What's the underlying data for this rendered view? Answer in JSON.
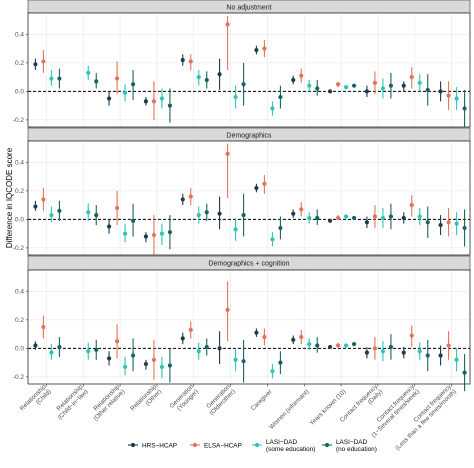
{
  "chart_data": {
    "type": "scatter",
    "subtype": "point-range (estimate with 95% interval), faceted",
    "ylabel": "Difference in IQCODE score",
    "xlabel": "",
    "ylim": [
      -0.25,
      0.55
    ],
    "yticks": [
      -0.2,
      0,
      0.2,
      0.4
    ],
    "reference_line": 0,
    "grid": true,
    "legend_position": "bottom",
    "categories": [
      [
        "Relationship",
        "(Child)"
      ],
      [
        "Relationship",
        "(Child−in−law)"
      ],
      [
        "Relationship",
        "(Other relative)"
      ],
      [
        "Relationship",
        "(Other)"
      ],
      [
        "Generation",
        "(Younger)"
      ],
      [
        "Generation",
        "(Olderother)"
      ],
      [
        "Caregiver"
      ],
      [
        "Women (informant)"
      ],
      [
        "Years known (10)"
      ],
      [
        "Contact frequency",
        "(Daily)"
      ],
      [
        "Contact frequency",
        "(1−Several times/week)"
      ],
      [
        "Contact frequency",
        "(Less than a few times/month)"
      ]
    ],
    "series": [
      {
        "name": "HRS−HCAP",
        "color": "#1f3a4d"
      },
      {
        "name": "ELSA−HCAP",
        "color": "#e0735a"
      },
      {
        "name": "LASI−DAD\n(some education)",
        "color": "#2ec4b6"
      },
      {
        "name": "LASI−DAD\n(no education)",
        "color": "#16655f"
      }
    ],
    "panels": [
      {
        "title": "No adjustment",
        "points": [
          [
            [
              0.19,
              0.15,
              0.23
            ],
            [
              0.21,
              0.13,
              0.29
            ],
            [
              0.09,
              0.04,
              0.15
            ],
            [
              0.09,
              0.02,
              0.16
            ]
          ],
          [
            [
              0,
              0,
              0
            ],
            [
              0,
              0,
              0
            ],
            [
              0.13,
              0.08,
              0.18
            ],
            [
              0.07,
              0.02,
              0.13
            ]
          ],
          [
            [
              -0.05,
              -0.1,
              0.0
            ],
            [
              0.09,
              -0.02,
              0.21
            ],
            [
              -0.01,
              -0.07,
              0.05
            ],
            [
              0.05,
              -0.06,
              0.15
            ]
          ],
          [
            [
              -0.07,
              -0.1,
              -0.04
            ],
            [
              -0.07,
              -0.2,
              0.07
            ],
            [
              -0.05,
              -0.12,
              0.02
            ],
            [
              -0.1,
              -0.22,
              0.02
            ]
          ],
          [
            [
              0.22,
              0.18,
              0.26
            ],
            [
              0.21,
              0.15,
              0.26
            ],
            [
              0.1,
              0.04,
              0.15
            ],
            [
              0.08,
              0.02,
              0.14
            ]
          ],
          [
            [
              0.12,
              0.01,
              0.23
            ],
            [
              0.47,
              0.15,
              0.53
            ],
            [
              -0.04,
              -0.12,
              0.04
            ],
            [
              0.05,
              -0.1,
              0.2
            ]
          ],
          [
            [
              0.29,
              0.26,
              0.32
            ],
            [
              0.3,
              0.24,
              0.36
            ],
            [
              -0.12,
              -0.17,
              -0.07
            ],
            [
              -0.04,
              -0.12,
              0.04
            ]
          ],
          [
            [
              0.08,
              0.05,
              0.11
            ],
            [
              0.11,
              0.06,
              0.16
            ],
            [
              0.04,
              0.0,
              0.08
            ],
            [
              0.02,
              -0.03,
              0.08
            ]
          ],
          [
            [
              0.0,
              -0.01,
              0.01
            ],
            [
              0.05,
              0.03,
              0.06
            ],
            [
              0.03,
              0.02,
              0.04
            ],
            [
              0.04,
              0.03,
              0.05
            ]
          ],
          [
            [
              0.0,
              -0.04,
              0.04
            ],
            [
              0.06,
              -0.02,
              0.14
            ],
            [
              0.02,
              -0.05,
              0.09
            ],
            [
              0.04,
              -0.05,
              0.13
            ]
          ],
          [
            [
              0.04,
              0.0,
              0.07
            ],
            [
              0.1,
              0.02,
              0.17
            ],
            [
              0.06,
              0.0,
              0.12
            ],
            [
              0.01,
              -0.1,
              0.12
            ]
          ],
          [
            [
              0.0,
              -0.07,
              0.07
            ],
            [
              -0.03,
              -0.13,
              0.07
            ],
            [
              -0.05,
              -0.13,
              0.03
            ],
            [
              -0.12,
              -0.25,
              0.01
            ]
          ]
        ]
      },
      {
        "title": "Demographics",
        "points": [
          [
            [
              0.09,
              0.06,
              0.13
            ],
            [
              0.14,
              0.06,
              0.22
            ],
            [
              0.03,
              -0.02,
              0.09
            ],
            [
              0.06,
              -0.01,
              0.13
            ]
          ],
          [
            [
              0,
              0,
              0
            ],
            [
              0,
              0,
              0
            ],
            [
              0.05,
              -0.01,
              0.11
            ],
            [
              0.03,
              -0.04,
              0.1
            ]
          ],
          [
            [
              -0.05,
              -0.1,
              0.0
            ],
            [
              0.08,
              -0.04,
              0.2
            ],
            [
              -0.1,
              -0.16,
              -0.03
            ],
            [
              -0.01,
              -0.12,
              0.11
            ]
          ],
          [
            [
              -0.12,
              -0.16,
              -0.09
            ],
            [
              -0.11,
              -0.25,
              0.03
            ],
            [
              -0.1,
              -0.18,
              -0.03
            ],
            [
              -0.09,
              -0.21,
              0.03
            ]
          ],
          [
            [
              0.14,
              0.1,
              0.18
            ],
            [
              0.16,
              0.1,
              0.22
            ],
            [
              0.03,
              -0.03,
              0.09
            ],
            [
              0.05,
              -0.01,
              0.11
            ]
          ],
          [
            [
              0.04,
              -0.07,
              0.16
            ],
            [
              0.46,
              0.15,
              0.53
            ],
            [
              -0.07,
              -0.15,
              0.01
            ],
            [
              0.03,
              -0.12,
              0.18
            ]
          ],
          [
            [
              0.22,
              0.19,
              0.25
            ],
            [
              0.25,
              0.18,
              0.31
            ],
            [
              -0.14,
              -0.19,
              -0.09
            ],
            [
              -0.06,
              -0.14,
              0.02
            ]
          ],
          [
            [
              0.04,
              0.01,
              0.07
            ],
            [
              0.07,
              0.02,
              0.12
            ],
            [
              0.01,
              -0.03,
              0.05
            ],
            [
              0.01,
              -0.04,
              0.07
            ]
          ],
          [
            [
              -0.01,
              -0.02,
              0.0
            ],
            [
              0.01,
              0.0,
              0.03
            ],
            [
              0.02,
              0.01,
              0.03
            ],
            [
              0.01,
              0.0,
              0.02
            ]
          ],
          [
            [
              -0.02,
              -0.06,
              0.02
            ],
            [
              0.02,
              -0.06,
              0.1
            ],
            [
              0.01,
              -0.06,
              0.08
            ],
            [
              0.02,
              -0.07,
              0.11
            ]
          ],
          [
            [
              0.01,
              -0.03,
              0.05
            ],
            [
              0.1,
              0.02,
              0.17
            ],
            [
              0.02,
              -0.04,
              0.08
            ],
            [
              -0.02,
              -0.13,
              0.09
            ]
          ],
          [
            [
              -0.04,
              -0.11,
              0.03
            ],
            [
              -0.02,
              -0.12,
              0.08
            ],
            [
              -0.03,
              -0.11,
              0.05
            ],
            [
              -0.06,
              -0.19,
              0.07
            ]
          ]
        ]
      },
      {
        "title": "Demographics + cognition",
        "points": [
          [
            [
              0.02,
              -0.01,
              0.05
            ],
            [
              0.15,
              0.07,
              0.23
            ],
            [
              -0.03,
              -0.08,
              0.03
            ],
            [
              0.01,
              -0.06,
              0.08
            ]
          ],
          [
            [
              0,
              0,
              0
            ],
            [
              0,
              0,
              0
            ],
            [
              -0.02,
              -0.08,
              0.04
            ],
            [
              -0.01,
              -0.08,
              0.06
            ]
          ],
          [
            [
              -0.07,
              -0.12,
              -0.02
            ],
            [
              0.05,
              -0.07,
              0.17
            ],
            [
              -0.13,
              -0.19,
              -0.06
            ],
            [
              -0.05,
              -0.16,
              0.07
            ]
          ],
          [
            [
              -0.11,
              -0.15,
              -0.08
            ],
            [
              -0.08,
              -0.22,
              0.06
            ],
            [
              -0.13,
              -0.21,
              -0.06
            ],
            [
              -0.12,
              -0.24,
              0.0
            ]
          ],
          [
            [
              0.07,
              0.03,
              0.11
            ],
            [
              0.13,
              0.07,
              0.19
            ],
            [
              -0.02,
              -0.08,
              0.04
            ],
            [
              0.01,
              -0.05,
              0.07
            ]
          ],
          [
            [
              0.0,
              -0.11,
              0.12
            ],
            [
              0.27,
              0.05,
              0.47
            ],
            [
              -0.08,
              -0.16,
              0.0
            ],
            [
              -0.09,
              -0.24,
              0.06
            ]
          ],
          [
            [
              0.11,
              0.08,
              0.14
            ],
            [
              0.08,
              0.02,
              0.14
            ],
            [
              -0.16,
              -0.21,
              -0.11
            ],
            [
              -0.1,
              -0.18,
              -0.02
            ]
          ],
          [
            [
              0.06,
              0.03,
              0.09
            ],
            [
              0.08,
              0.03,
              0.13
            ],
            [
              0.03,
              -0.01,
              0.07
            ],
            [
              0.02,
              -0.03,
              0.08
            ]
          ],
          [
            [
              0.01,
              0.0,
              0.02
            ],
            [
              0.02,
              0.01,
              0.04
            ],
            [
              0.02,
              0.01,
              0.03
            ],
            [
              0.03,
              0.02,
              0.04
            ]
          ],
          [
            [
              -0.03,
              -0.07,
              0.01
            ],
            [
              0.0,
              -0.08,
              0.08
            ],
            [
              -0.02,
              -0.09,
              0.05
            ],
            [
              0.01,
              -0.08,
              0.1
            ]
          ],
          [
            [
              -0.03,
              -0.07,
              0.01
            ],
            [
              0.09,
              0.01,
              0.16
            ],
            [
              -0.02,
              -0.08,
              0.04
            ],
            [
              -0.05,
              -0.16,
              0.06
            ]
          ],
          [
            [
              -0.05,
              -0.12,
              0.02
            ],
            [
              0.02,
              -0.08,
              0.12
            ],
            [
              -0.08,
              -0.16,
              0.0
            ],
            [
              -0.17,
              -0.3,
              -0.04
            ]
          ]
        ]
      }
    ],
    "missing_estimates": [
      [
        1,
        0
      ],
      [
        1,
        1
      ]
    ]
  }
}
